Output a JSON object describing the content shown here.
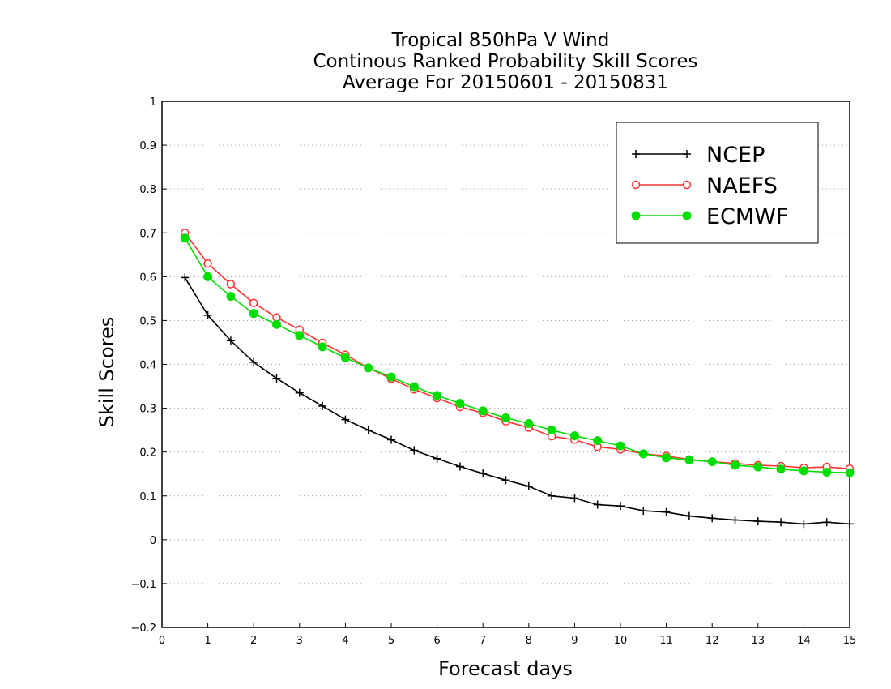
{
  "chart_data": {
    "type": "line",
    "title_lines": [
      "Tropical 850hPa V Wind",
      "Continous Ranked Probability Skill Scores",
      "Average For 20150601 - 20150831"
    ],
    "xlabel": "Forecast days",
    "ylabel": "Skill Scores",
    "xlim": [
      0,
      15
    ],
    "ylim": [
      -0.2,
      1
    ],
    "xticks": [
      "0",
      "1",
      "2",
      "3",
      "4",
      "5",
      "6",
      "7",
      "8",
      "9",
      "10",
      "11",
      "12",
      "13",
      "14",
      "15"
    ],
    "yticks": [
      "−0.2",
      "−0.1",
      "0",
      "0.1",
      "0.2",
      "0.3",
      "0.4",
      "0.5",
      "0.6",
      "0.7",
      "0.8",
      "0.9",
      "1"
    ],
    "grid": "horizontal dotted",
    "legend_position": "top-right",
    "x": [
      0.5,
      1,
      1.5,
      2,
      2.5,
      3,
      3.5,
      4,
      4.5,
      5,
      5.5,
      6,
      6.5,
      7,
      7.5,
      8,
      8.5,
      9,
      9.5,
      10,
      10.5,
      11,
      11.5,
      12,
      12.5,
      13,
      13.5,
      14,
      14.5,
      15
    ],
    "series": [
      {
        "name": "NCEP",
        "color": "#000000",
        "marker": "plus",
        "values": [
          0.598,
          0.512,
          0.454,
          0.405,
          0.368,
          0.335,
          0.305,
          0.274,
          0.25,
          0.228,
          0.204,
          0.185,
          0.167,
          0.151,
          0.136,
          0.122,
          0.1,
          0.095,
          0.08,
          0.077,
          0.066,
          0.063,
          0.054,
          0.049,
          0.045,
          0.042,
          0.04,
          0.036,
          0.04,
          0.036
        ]
      },
      {
        "name": "NAEFS",
        "color": "#ff3333",
        "marker": "open-circle",
        "values": [
          0.7,
          0.63,
          0.583,
          0.54,
          0.507,
          0.479,
          0.449,
          0.422,
          0.392,
          0.367,
          0.343,
          0.323,
          0.303,
          0.289,
          0.27,
          0.256,
          0.236,
          0.228,
          0.212,
          0.206,
          0.196,
          0.191,
          0.183,
          0.178,
          0.174,
          0.17,
          0.168,
          0.164,
          0.166,
          0.162
        ]
      },
      {
        "name": "ECMWF",
        "color": "#00dd00",
        "marker": "filled-circle",
        "values": [
          0.688,
          0.6,
          0.555,
          0.516,
          0.491,
          0.466,
          0.44,
          0.415,
          0.392,
          0.371,
          0.349,
          0.329,
          0.311,
          0.294,
          0.278,
          0.265,
          0.25,
          0.237,
          0.226,
          0.214,
          0.196,
          0.187,
          0.182,
          0.178,
          0.17,
          0.166,
          0.161,
          0.157,
          0.154,
          0.153
        ]
      }
    ]
  }
}
